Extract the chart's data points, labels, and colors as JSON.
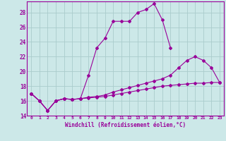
{
  "xlabel": "Windchill (Refroidissement éolien,°C)",
  "bg_color": "#cce8e8",
  "line_color": "#990099",
  "grid_color": "#aacccc",
  "xmin": -0.5,
  "xmax": 23.5,
  "ymin": 14,
  "ymax": 29.5,
  "yticks": [
    14,
    16,
    18,
    20,
    22,
    24,
    26,
    28
  ],
  "xticks": [
    0,
    1,
    2,
    3,
    4,
    5,
    6,
    7,
    8,
    9,
    10,
    11,
    12,
    13,
    14,
    15,
    16,
    17,
    18,
    19,
    20,
    21,
    22,
    23
  ],
  "line1_x": [
    0,
    1,
    2,
    3,
    4,
    5,
    6,
    7,
    8,
    9,
    10,
    11,
    12,
    13,
    14,
    15,
    16,
    17
  ],
  "line1_y": [
    17.0,
    16.0,
    14.7,
    16.0,
    16.3,
    16.2,
    16.3,
    19.5,
    23.2,
    24.5,
    26.8,
    26.8,
    26.8,
    28.0,
    28.4,
    29.2,
    27.0,
    23.2
  ],
  "line2_x": [
    0,
    1,
    2,
    3,
    4,
    5,
    6,
    7,
    8,
    9,
    10,
    11,
    12,
    13,
    14,
    15,
    16,
    17,
    18,
    19,
    20,
    21,
    22,
    23
  ],
  "line2_y": [
    17.0,
    16.0,
    14.7,
    16.0,
    16.3,
    16.2,
    16.3,
    16.5,
    16.6,
    16.8,
    17.2,
    17.5,
    17.8,
    18.1,
    18.4,
    18.7,
    19.0,
    19.5,
    20.5,
    21.5,
    22.0,
    21.5,
    20.5,
    18.5
  ],
  "line3_x": [
    0,
    1,
    2,
    3,
    4,
    5,
    6,
    7,
    8,
    9,
    10,
    11,
    12,
    13,
    14,
    15,
    16,
    17,
    18,
    19,
    20,
    21,
    22,
    23
  ],
  "line3_y": [
    17.0,
    16.0,
    14.7,
    16.0,
    16.3,
    16.2,
    16.3,
    16.4,
    16.5,
    16.6,
    16.8,
    17.0,
    17.2,
    17.4,
    17.6,
    17.8,
    18.0,
    18.1,
    18.2,
    18.3,
    18.4,
    18.4,
    18.5,
    18.5
  ]
}
